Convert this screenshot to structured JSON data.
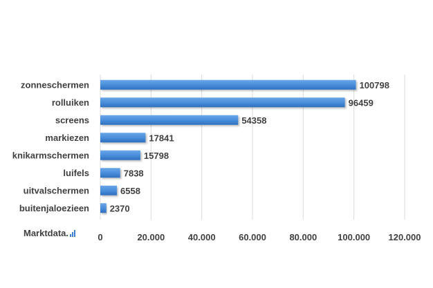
{
  "brand": {
    "name": "Marktdata.",
    "bar_color": "#3a7fd0"
  },
  "chart_data": {
    "type": "bar",
    "orientation": "horizontal",
    "categories": [
      "zonneschermen",
      "rolluiken",
      "screens",
      "markiezen",
      "knikarmschermen",
      "luifels",
      "uitvalschermen",
      "buitenjaloezieen"
    ],
    "values": [
      100798,
      96459,
      54358,
      17841,
      15798,
      7838,
      6558,
      2370
    ],
    "data_labels": [
      "100798",
      "96459",
      "54358",
      "17841",
      "15798",
      "7838",
      "6558",
      "2370"
    ],
    "xlim": [
      0,
      120000
    ],
    "xticks": [
      0,
      20000,
      40000,
      60000,
      80000,
      100000,
      120000
    ],
    "xtick_labels": [
      "0",
      "20.000",
      "40.000",
      "60.000",
      "80.000",
      "100.000",
      "120.000"
    ],
    "grid": true,
    "bar_color": "#4a8fdb",
    "title": "",
    "xlabel": "",
    "ylabel": ""
  }
}
